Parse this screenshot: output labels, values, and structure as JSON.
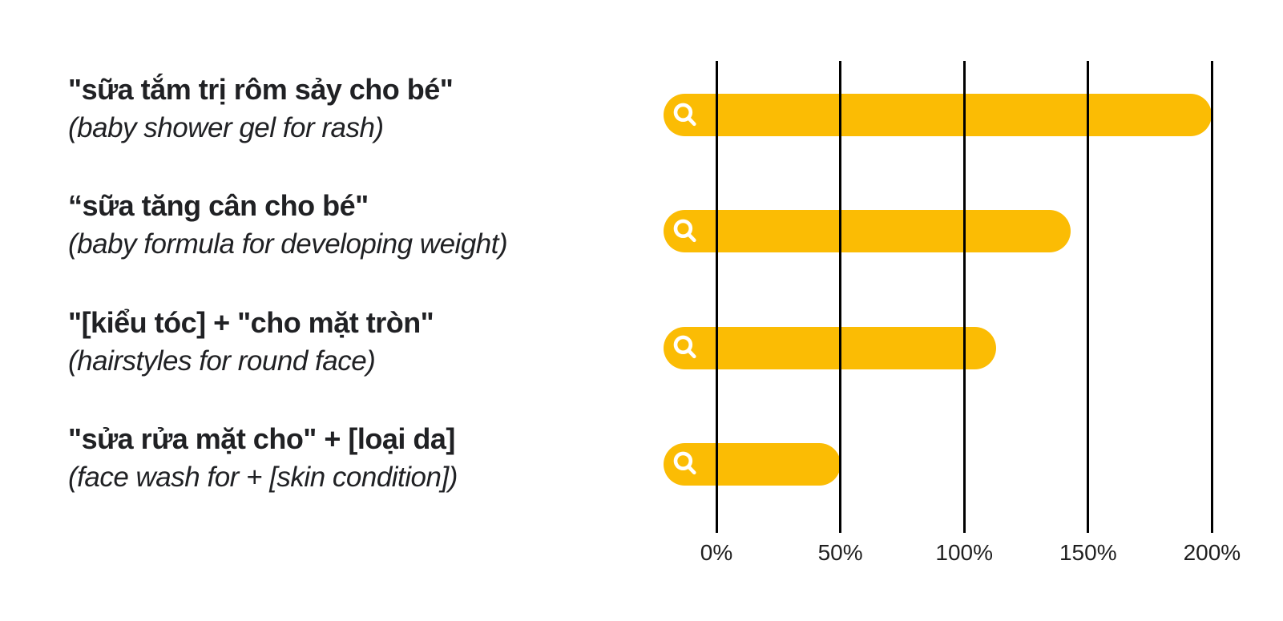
{
  "colors": {
    "background": "#ffffff",
    "bar_fill": "#FBBC04",
    "gridline": "#000000",
    "label_text": "#202124",
    "axis_text": "#1f1f1f",
    "icon": "#ffffff"
  },
  "chart_data": {
    "type": "bar",
    "orientation": "horizontal",
    "title": "",
    "xlabel": "",
    "ylabel": "",
    "unit": "%",
    "xlim": [
      0,
      200
    ],
    "x_ticks": [
      "0%",
      "50%",
      "100%",
      "150%",
      "200%"
    ],
    "x_tick_values": [
      0,
      50,
      100,
      150,
      200
    ],
    "grid": "vertical-lines-on-top-of-bars",
    "legend": "none",
    "bar_style": "rounded-pill-with-search-icon",
    "bar_color": "#FBBC04",
    "categories": [
      "\"sữa tắm trị rôm sảy cho bé\"",
      "“sữa tăng cân cho bé\"",
      "\"[kiểu tóc] + \"cho mặt tròn\"",
      "\"sửa rửa mặt cho\" + [loại da]"
    ],
    "values": [
      200,
      143,
      113,
      50
    ],
    "rows": [
      {
        "query": "\"sữa tắm trị rôm sảy cho bé\"",
        "translation": "(baby shower gel for rash)",
        "value": 200
      },
      {
        "query": "“sữa tăng cân cho bé\"",
        "translation": "(baby formula for developing weight)",
        "value": 143
      },
      {
        "query": "\"[kiểu tóc] + \"cho mặt tròn\"",
        "translation": "(hairstyles for round face)",
        "value": 113
      },
      {
        "query": "\"sửa rửa mặt cho\" + [loại da]",
        "translation": "(face wash for + [skin condition])",
        "value": 50
      }
    ]
  }
}
